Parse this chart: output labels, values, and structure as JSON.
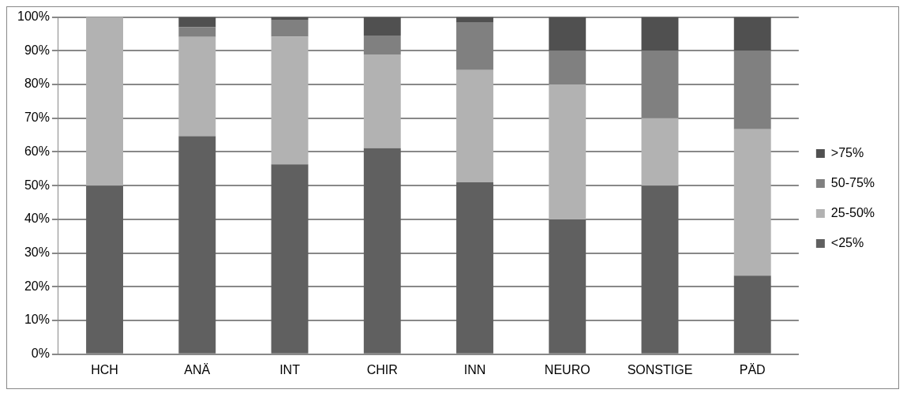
{
  "chart_data": {
    "type": "bar",
    "stacked": true,
    "categories": [
      "HCH",
      "ANÄ",
      "INT",
      "CHIR",
      "INN",
      "NEURO",
      "SONSTIGE",
      "PÄD"
    ],
    "series": [
      {
        "name": "<25%",
        "color": "#606060",
        "values": [
          50,
          64.7,
          56.3,
          61.1,
          51,
          40,
          50,
          23.3
        ]
      },
      {
        "name": "25-50%",
        "color": "#b2b2b2",
        "values": [
          50,
          29.4,
          37.9,
          27.8,
          33.3,
          40,
          20,
          43.4
        ]
      },
      {
        "name": "50-75%",
        "color": "#808080",
        "values": [
          0,
          2.9,
          5,
          5.6,
          14,
          10,
          20,
          23.3
        ]
      },
      {
        "name": ">75%",
        "color": "#505050",
        "values": [
          0,
          3,
          0.8,
          5.5,
          1.7,
          10,
          10,
          10
        ]
      }
    ],
    "ylim": [
      0,
      100
    ],
    "yticks": [
      {
        "value": 0,
        "label": "0%"
      },
      {
        "value": 10,
        "label": "10%"
      },
      {
        "value": 20,
        "label": "20%"
      },
      {
        "value": 30,
        "label": "30%"
      },
      {
        "value": 40,
        "label": "40%"
      },
      {
        "value": 50,
        "label": "50%"
      },
      {
        "value": 60,
        "label": "60%"
      },
      {
        "value": 70,
        "label": "70%"
      },
      {
        "value": 80,
        "label": "80%"
      },
      {
        "value": 90,
        "label": "90%"
      },
      {
        "value": 100,
        "label": "100%"
      }
    ],
    "grid": "y",
    "legend": "right"
  }
}
